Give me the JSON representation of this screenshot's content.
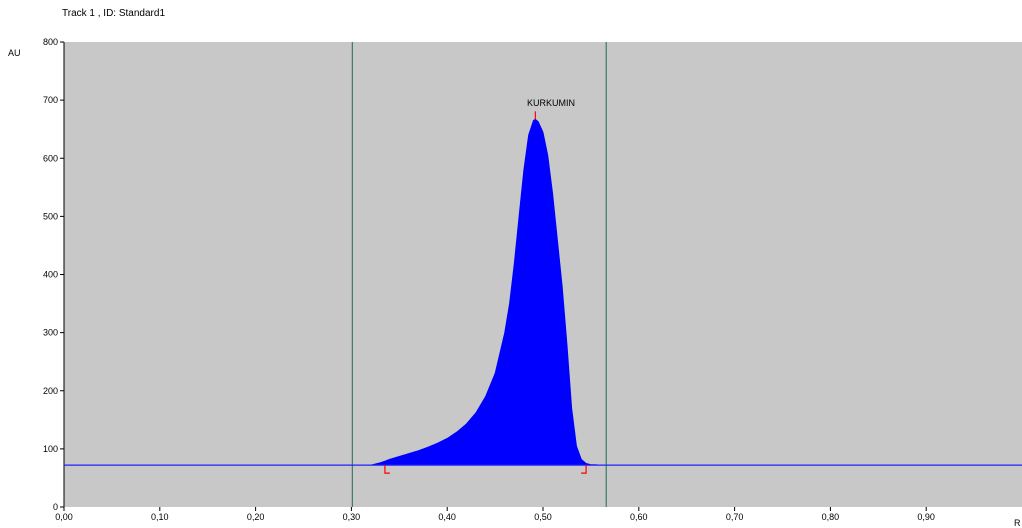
{
  "window_title": "Track  1 , ID: Standard1",
  "chart_data": {
    "type": "area",
    "title": "Track  1 , ID: Standard1",
    "ylabel": "AU",
    "xlabel": "R",
    "xlim": [
      0.0,
      1.0
    ],
    "ylim": [
      0,
      800
    ],
    "x_ticks": [
      0.0,
      0.1,
      0.2,
      0.3,
      0.4,
      0.5,
      0.6,
      0.7,
      0.8,
      0.9
    ],
    "x_tick_labels": [
      "0,00",
      "0,10",
      "0,20",
      "0,30",
      "0,40",
      "0,50",
      "0,60",
      "0,70",
      "0,80",
      "0,90"
    ],
    "y_ticks": [
      0,
      100,
      200,
      300,
      400,
      500,
      600,
      700,
      800
    ],
    "y_tick_labels": [
      "0",
      "100",
      "200",
      "300",
      "400",
      "500",
      "600",
      "700",
      "800"
    ],
    "baseline": 72,
    "vertical_lines": [
      0.301,
      0.566
    ],
    "peak": {
      "label": "KURKUMIN",
      "rf_max": 0.492,
      "height_max": 667,
      "rf_start": 0.335,
      "rf_end": 0.545
    },
    "series": [
      {
        "x": [
          0.32,
          0.33,
          0.335,
          0.34,
          0.35,
          0.36,
          0.37,
          0.38,
          0.39,
          0.4,
          0.41,
          0.42,
          0.43,
          0.44,
          0.45,
          0.46,
          0.465,
          0.47,
          0.475,
          0.48,
          0.485,
          0.49,
          0.492,
          0.495,
          0.5,
          0.505,
          0.51,
          0.515,
          0.52,
          0.525,
          0.53,
          0.535,
          0.54,
          0.545,
          0.55,
          0.555,
          0.56,
          0.57
        ],
        "y": [
          72,
          76,
          79,
          82,
          87,
          92,
          97,
          103,
          110,
          118,
          129,
          143,
          162,
          190,
          230,
          300,
          350,
          420,
          500,
          580,
          640,
          665,
          667,
          663,
          645,
          605,
          540,
          460,
          380,
          280,
          170,
          105,
          82,
          75,
          73,
          73,
          72,
          72
        ],
        "color": "#0000ff"
      }
    ],
    "colors": {
      "plot_bg": "#c8c8c8",
      "fill": "#0000ff",
      "baseline": "#2020ff",
      "vertical_line": "#3c7a68",
      "peak_marker": "#ff0000"
    },
    "grid": false,
    "legend": "none"
  }
}
